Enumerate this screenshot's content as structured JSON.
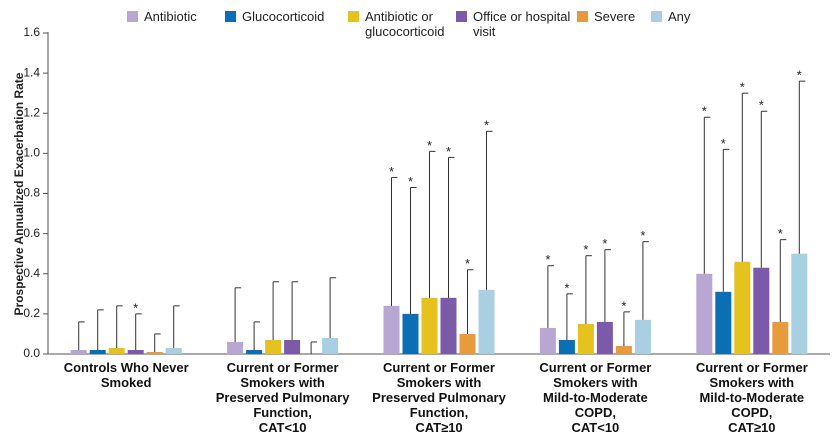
{
  "chart_data": {
    "type": "bar",
    "ylabel": "Prospective Annualized Exacerbation Rate",
    "categories": [
      "Controls Who Never\nSmoked",
      "Current or Former\nSmokers with\nPreserved Pulmonary\nFunction,\nCAT<10",
      "Current or Former\nSmokers with\nPreserved Pulmonary\nFunction,\nCAT≥10",
      "Current or Former\nSmokers with\nMild-to-Moderate\nCOPD,\nCAT<10",
      "Current or Former\nSmokers with\nMild-to-Moderate\nCOPD,\nCAT≥10"
    ],
    "series": [
      {
        "name": "Antibiotic",
        "color": "#b9a7d3",
        "values": [
          0.02,
          0.06,
          0.24,
          0.13,
          0.4
        ],
        "errors": [
          0.14,
          0.27,
          0.64,
          0.31,
          0.78
        ],
        "markers": [
          null,
          null,
          "*",
          "*",
          "*"
        ]
      },
      {
        "name": "Glucocorticoid",
        "color": "#0a6fb5",
        "values": [
          0.02,
          0.02,
          0.2,
          0.07,
          0.31
        ],
        "errors": [
          0.2,
          0.14,
          0.63,
          0.23,
          0.71
        ],
        "markers": [
          null,
          null,
          "*",
          "*",
          "*"
        ]
      },
      {
        "name": "Antibiotic or\nglucocorticoid",
        "color": "#e6c21e",
        "values": [
          0.03,
          0.07,
          0.28,
          0.15,
          0.46
        ],
        "errors": [
          0.21,
          0.29,
          0.73,
          0.34,
          0.84
        ],
        "markers": [
          null,
          null,
          "*",
          "*",
          "*"
        ]
      },
      {
        "name": "Office or hospital\nvisit",
        "color": "#7b5ba9",
        "values": [
          0.02,
          0.07,
          0.28,
          0.16,
          0.43
        ],
        "errors": [
          0.18,
          0.29,
          0.7,
          0.36,
          0.78
        ],
        "markers": [
          "*",
          null,
          "*",
          "*",
          "*"
        ]
      },
      {
        "name": "Severe",
        "color": "#e89b3d",
        "values": [
          0.01,
          0.0,
          0.1,
          0.04,
          0.16
        ],
        "errors": [
          0.09,
          0.06,
          0.32,
          0.17,
          0.41
        ],
        "markers": [
          null,
          null,
          "*",
          "*",
          "*"
        ]
      },
      {
        "name": "Any",
        "color": "#a9cfe2",
        "values": [
          0.03,
          0.08,
          0.32,
          0.17,
          0.5
        ],
        "errors": [
          0.21,
          0.3,
          0.79,
          0.39,
          0.86
        ],
        "markers": [
          null,
          null,
          "*",
          "*",
          "*"
        ]
      }
    ],
    "ylim": [
      0,
      1.6
    ],
    "yticks": [
      {
        "value": 0,
        "label": "0.0"
      },
      0.2,
      0.4,
      0.6,
      0.8,
      {
        "value": 1,
        "label": "1.0"
      },
      1.2,
      1.4,
      1.6
    ],
    "legend": "top"
  }
}
